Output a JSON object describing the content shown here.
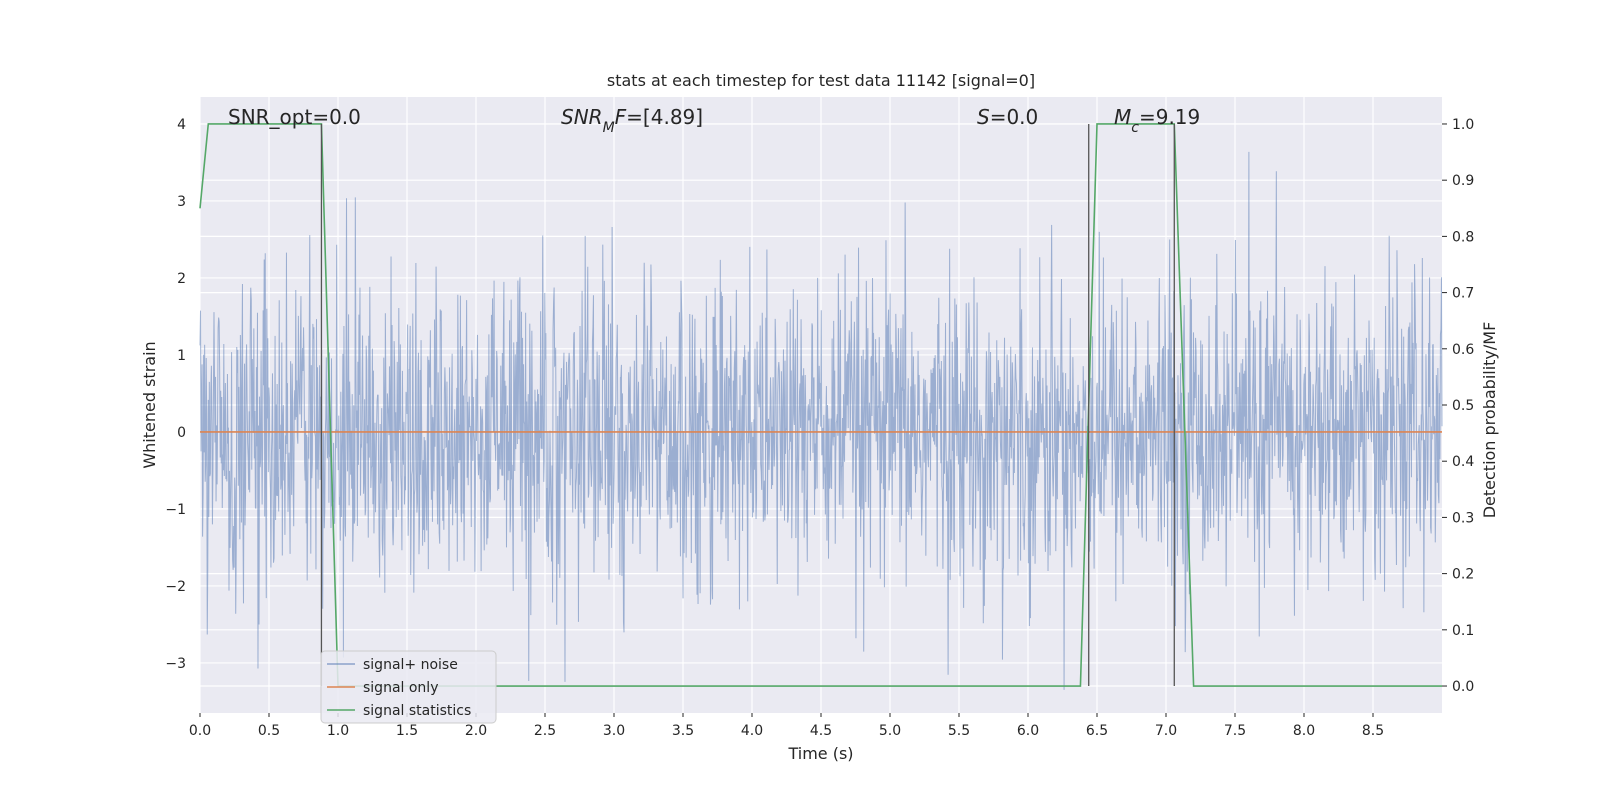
{
  "chart_data": {
    "type": "line",
    "title": "stats at each timestep for test data 11142 [signal=0]",
    "xlabel": "Time (s)",
    "ylabel": "Whitened strain",
    "y2label": "Detection probability/MF",
    "xlim": [
      0,
      9.0
    ],
    "ylim": [
      -3.65,
      4.35
    ],
    "y2lim": [
      -0.048,
      1.048
    ],
    "xticks": [
      "0.0",
      "0.5",
      "1.0",
      "1.5",
      "2.0",
      "2.5",
      "3.0",
      "3.5",
      "4.0",
      "4.5",
      "5.0",
      "5.5",
      "6.0",
      "6.5",
      "7.0",
      "7.5",
      "8.0",
      "8.5"
    ],
    "xtick_values": [
      0,
      0.5,
      1,
      1.5,
      2,
      2.5,
      3,
      3.5,
      4,
      4.5,
      5,
      5.5,
      6,
      6.5,
      7,
      7.5,
      8,
      8.5
    ],
    "yticks": [
      "−3",
      "−2",
      "−1",
      "0",
      "1",
      "2",
      "3",
      "4"
    ],
    "ytick_values": [
      -3,
      -2,
      -1,
      0,
      1,
      2,
      3,
      4
    ],
    "y2ticks": [
      "0.0",
      "0.1",
      "0.2",
      "0.3",
      "0.4",
      "0.5",
      "0.6",
      "0.7",
      "0.8",
      "0.9",
      "1.0"
    ],
    "y2tick_values": [
      0,
      0.1,
      0.2,
      0.3,
      0.4,
      0.5,
      0.6,
      0.7,
      0.8,
      0.9,
      1.0
    ],
    "grid": true,
    "legend_position": "lower-left",
    "series": [
      {
        "name": "signal+ noise",
        "color": "#4c72b0",
        "axis": "left",
        "kind": "noise",
        "x_range": [
          0,
          9.0
        ],
        "amplitude_typical": 2.0,
        "amplitude_max": 4.0
      },
      {
        "name": "signal only",
        "color": "#dd8452",
        "axis": "left",
        "kind": "line",
        "x": [
          0,
          9.0
        ],
        "y": [
          0,
          0
        ]
      },
      {
        "name": "signal statistics",
        "color": "#55a868",
        "axis": "right",
        "kind": "line",
        "x": [
          0,
          0.06,
          0.1,
          0.2,
          0.87,
          0.88,
          1.0,
          6.38,
          6.5,
          6.6,
          7.06,
          7.2,
          9.0
        ],
        "y": [
          0.85,
          1.0,
          1.0,
          1.0,
          1.0,
          1.0,
          0.0,
          0.0,
          1.0,
          1.0,
          1.0,
          0.0,
          0.0
        ]
      }
    ],
    "vertical_markers": [
      {
        "x": 0.88,
        "y2_from": 0.0,
        "y2_to": 1.0,
        "color": "#555555"
      },
      {
        "x": 6.44,
        "y2_from": 0.0,
        "y2_to": 1.0,
        "color": "#555555"
      },
      {
        "x": 7.06,
        "y2_from": 0.0,
        "y2_to": 1.0,
        "color": "#555555"
      }
    ],
    "annotations": [
      {
        "id": "snr-opt",
        "text": "SNR_opt=0.0"
      },
      {
        "id": "snr-mf",
        "text_parts": [
          {
            "t": "SNR",
            "i": true
          },
          {
            "t": "M",
            "i": true,
            "sub": true
          },
          {
            "t": "F",
            "i": true
          },
          {
            "t": "=[4.89]"
          }
        ]
      },
      {
        "id": "s",
        "text_parts": [
          {
            "t": "S",
            "i": true
          },
          {
            "t": "=0.0"
          }
        ]
      },
      {
        "id": "mc",
        "text_parts": [
          {
            "t": "M",
            "i": true
          },
          {
            "t": "c",
            "i": true,
            "sub": true
          },
          {
            "t": "=9.19"
          }
        ]
      }
    ]
  }
}
